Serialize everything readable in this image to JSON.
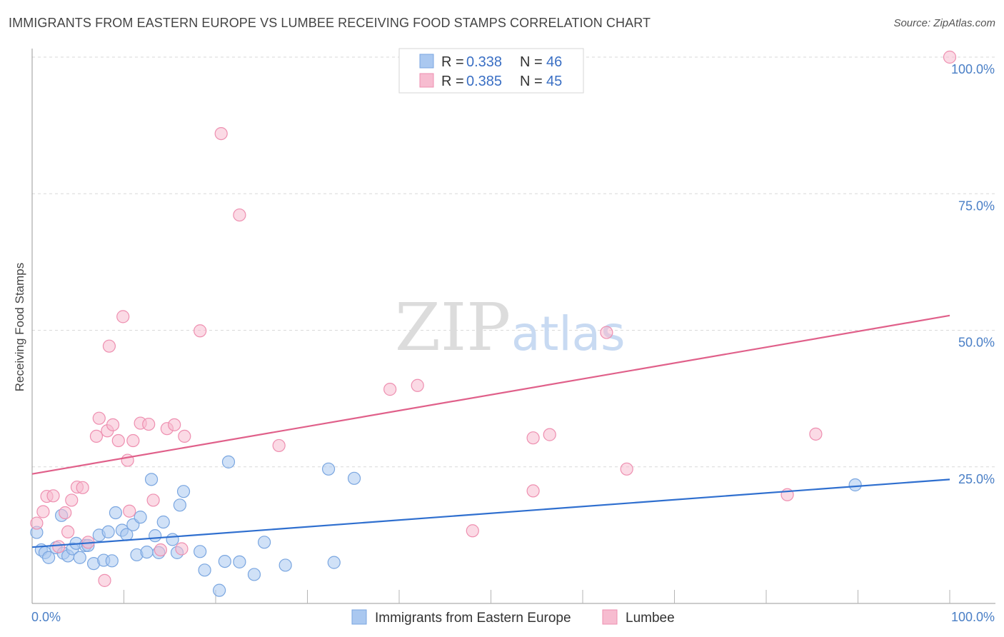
{
  "header": {
    "title": "IMMIGRANTS FROM EASTERN EUROPE VS LUMBEE RECEIVING FOOD STAMPS CORRELATION CHART",
    "source": "Source: ZipAtlas.com"
  },
  "watermark": {
    "zip": "ZIP",
    "atlas": "atlas"
  },
  "legend": {
    "series": [
      {
        "r_label": "R =",
        "r_value": "0.338",
        "n_label": "N =",
        "n_value": "46"
      },
      {
        "r_label": "R =",
        "r_value": "0.385",
        "n_label": "N =",
        "n_value": "45"
      }
    ]
  },
  "colors": {
    "blue_fill": "#aac8f0",
    "blue_stroke": "#7aa6e0",
    "blue_line": "#2f6fcf",
    "pink_fill": "#f7bcd0",
    "pink_stroke": "#ee8fb0",
    "pink_line": "#e0608a",
    "tick_color": "#4a7fc6",
    "grid": "#d9d9d9"
  },
  "chart_data": {
    "type": "scatter",
    "title": "IMMIGRANTS FROM EASTERN EUROPE VS LUMBEE RECEIVING FOOD STAMPS CORRELATION CHART",
    "xlabel": "",
    "ylabel": "Receiving Food Stamps",
    "xlim": [
      0,
      100
    ],
    "ylim": [
      0,
      100
    ],
    "x_tick_labels": [
      "0.0%",
      "100.0%"
    ],
    "y_ticks": [
      25,
      50,
      75,
      100
    ],
    "y_tick_labels": [
      "25.0%",
      "50.0%",
      "75.0%",
      "100.0%"
    ],
    "series": [
      {
        "name": "Immigrants from Eastern Europe",
        "color": "#aac8f0",
        "trend": {
          "x": [
            0,
            100
          ],
          "y": [
            10.3,
            22.7
          ]
        },
        "points": [
          [
            0.5,
            13.0
          ],
          [
            1.0,
            9.8
          ],
          [
            1.4,
            9.3
          ],
          [
            1.8,
            8.4
          ],
          [
            2.6,
            10.2
          ],
          [
            3.4,
            9.2
          ],
          [
            3.2,
            16.1
          ],
          [
            3.9,
            8.7
          ],
          [
            4.4,
            10.0
          ],
          [
            4.8,
            11.0
          ],
          [
            5.2,
            8.4
          ],
          [
            5.8,
            10.6
          ],
          [
            6.1,
            10.6
          ],
          [
            6.7,
            7.3
          ],
          [
            7.3,
            12.5
          ],
          [
            7.8,
            7.9
          ],
          [
            8.3,
            13.1
          ],
          [
            8.7,
            7.8
          ],
          [
            9.1,
            16.6
          ],
          [
            9.8,
            13.4
          ],
          [
            10.3,
            12.6
          ],
          [
            11.0,
            14.4
          ],
          [
            11.4,
            8.9
          ],
          [
            11.8,
            15.8
          ],
          [
            12.5,
            9.4
          ],
          [
            13.0,
            22.7
          ],
          [
            13.4,
            12.4
          ],
          [
            13.8,
            9.3
          ],
          [
            14.3,
            14.9
          ],
          [
            15.3,
            11.7
          ],
          [
            15.8,
            9.3
          ],
          [
            16.1,
            18.0
          ],
          [
            16.5,
            20.5
          ],
          [
            18.3,
            9.5
          ],
          [
            18.8,
            6.1
          ],
          [
            20.4,
            2.4
          ],
          [
            21.0,
            7.7
          ],
          [
            21.4,
            25.9
          ],
          [
            22.6,
            7.6
          ],
          [
            24.2,
            5.3
          ],
          [
            25.3,
            11.2
          ],
          [
            27.6,
            7.0
          ],
          [
            32.3,
            24.6
          ],
          [
            32.9,
            7.5
          ],
          [
            35.1,
            22.9
          ],
          [
            89.7,
            21.7
          ]
        ]
      },
      {
        "name": "Lumbee",
        "color": "#f7bcd0",
        "trend": {
          "x": [
            0,
            100
          ],
          "y": [
            23.7,
            52.7
          ]
        },
        "points": [
          [
            0.5,
            14.7
          ],
          [
            1.2,
            16.8
          ],
          [
            1.6,
            19.6
          ],
          [
            2.3,
            19.7
          ],
          [
            2.9,
            10.4
          ],
          [
            3.6,
            16.6
          ],
          [
            3.9,
            13.1
          ],
          [
            4.3,
            18.9
          ],
          [
            4.9,
            21.3
          ],
          [
            5.5,
            21.2
          ],
          [
            6.1,
            11.2
          ],
          [
            7.0,
            30.6
          ],
          [
            7.3,
            33.9
          ],
          [
            7.9,
            4.2
          ],
          [
            8.2,
            31.6
          ],
          [
            8.4,
            47.1
          ],
          [
            8.8,
            32.7
          ],
          [
            9.4,
            29.8
          ],
          [
            9.9,
            52.5
          ],
          [
            10.4,
            26.2
          ],
          [
            10.6,
            16.9
          ],
          [
            11.0,
            29.8
          ],
          [
            11.8,
            33.0
          ],
          [
            12.7,
            32.8
          ],
          [
            13.2,
            18.9
          ],
          [
            14.0,
            9.8
          ],
          [
            14.7,
            32.0
          ],
          [
            15.5,
            32.7
          ],
          [
            16.3,
            10.0
          ],
          [
            16.6,
            30.6
          ],
          [
            18.3,
            49.9
          ],
          [
            20.6,
            86.0
          ],
          [
            22.6,
            71.1
          ],
          [
            26.9,
            28.9
          ],
          [
            39.0,
            39.2
          ],
          [
            42.0,
            39.9
          ],
          [
            48.0,
            13.3
          ],
          [
            54.6,
            30.3
          ],
          [
            54.6,
            20.6
          ],
          [
            56.4,
            30.9
          ],
          [
            62.6,
            49.6
          ],
          [
            64.8,
            24.6
          ],
          [
            82.3,
            19.9
          ],
          [
            85.4,
            31.0
          ],
          [
            100.0,
            100.0
          ]
        ]
      }
    ]
  }
}
